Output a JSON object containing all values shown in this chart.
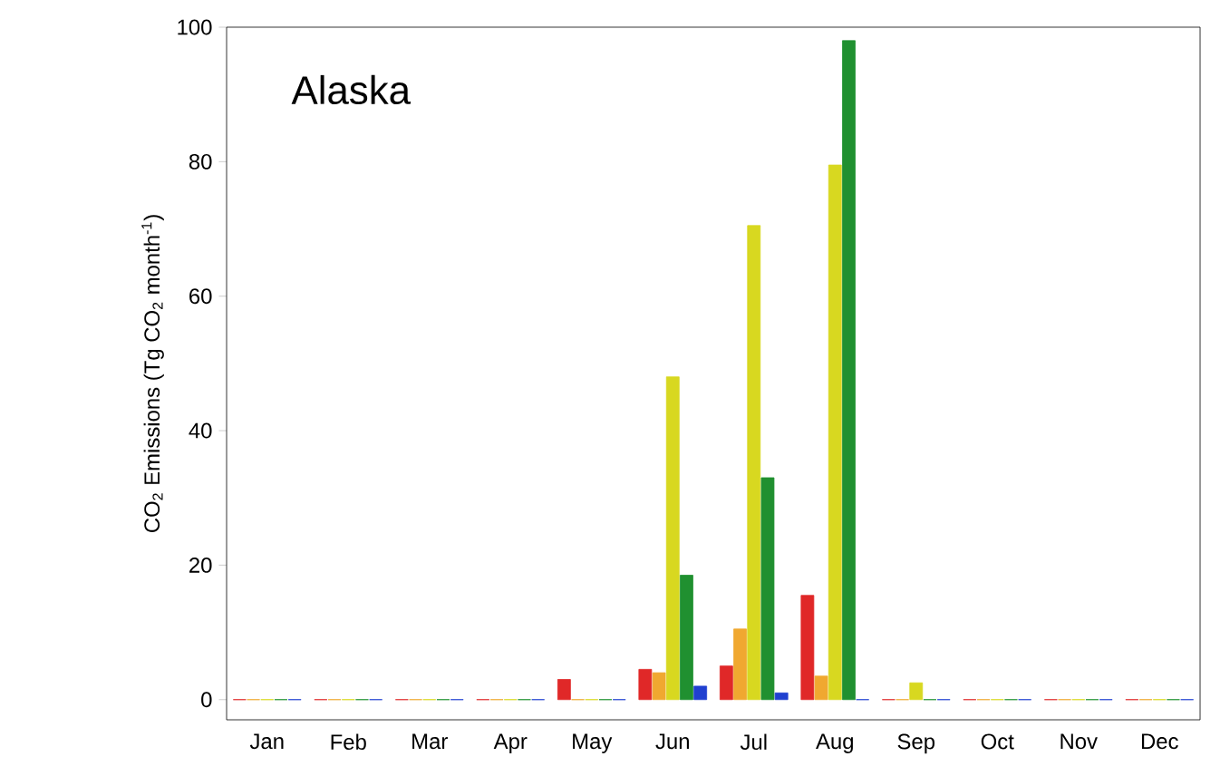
{
  "chart_data": {
    "type": "bar",
    "title": "Alaska",
    "ylabel": "CO$_{2}$ Emissions (Tg CO$_{2}$ month$^{-1}$)",
    "categories": [
      "Jan",
      "Feb",
      "Mar",
      "Apr",
      "May",
      "Jun",
      "Jul",
      "Aug",
      "Sep",
      "Oct",
      "Nov",
      "Dec"
    ],
    "series": [
      {
        "color": "#e02828",
        "values": [
          0,
          0,
          0,
          0,
          3,
          4.5,
          5,
          15.5,
          0,
          0,
          0,
          0
        ]
      },
      {
        "color": "#f0a830",
        "values": [
          0,
          0,
          0,
          0,
          0,
          4,
          10.5,
          3.5,
          0,
          0,
          0,
          0
        ]
      },
      {
        "color": "#d8d820",
        "values": [
          0,
          0,
          0,
          0,
          0,
          48,
          70.5,
          79.5,
          2.5,
          0,
          0,
          0
        ]
      },
      {
        "color": "#209030",
        "values": [
          0,
          0,
          0,
          0,
          0,
          18.5,
          33,
          98,
          0,
          0,
          0,
          0
        ]
      },
      {
        "color": "#2040d0",
        "values": [
          0,
          0,
          0,
          0,
          0,
          2,
          1,
          0,
          0,
          0,
          0,
          0
        ]
      }
    ],
    "ylim": [
      -3,
      100
    ],
    "yticks": [
      0,
      20,
      40,
      60,
      80,
      100
    ],
    "grid": false
  }
}
